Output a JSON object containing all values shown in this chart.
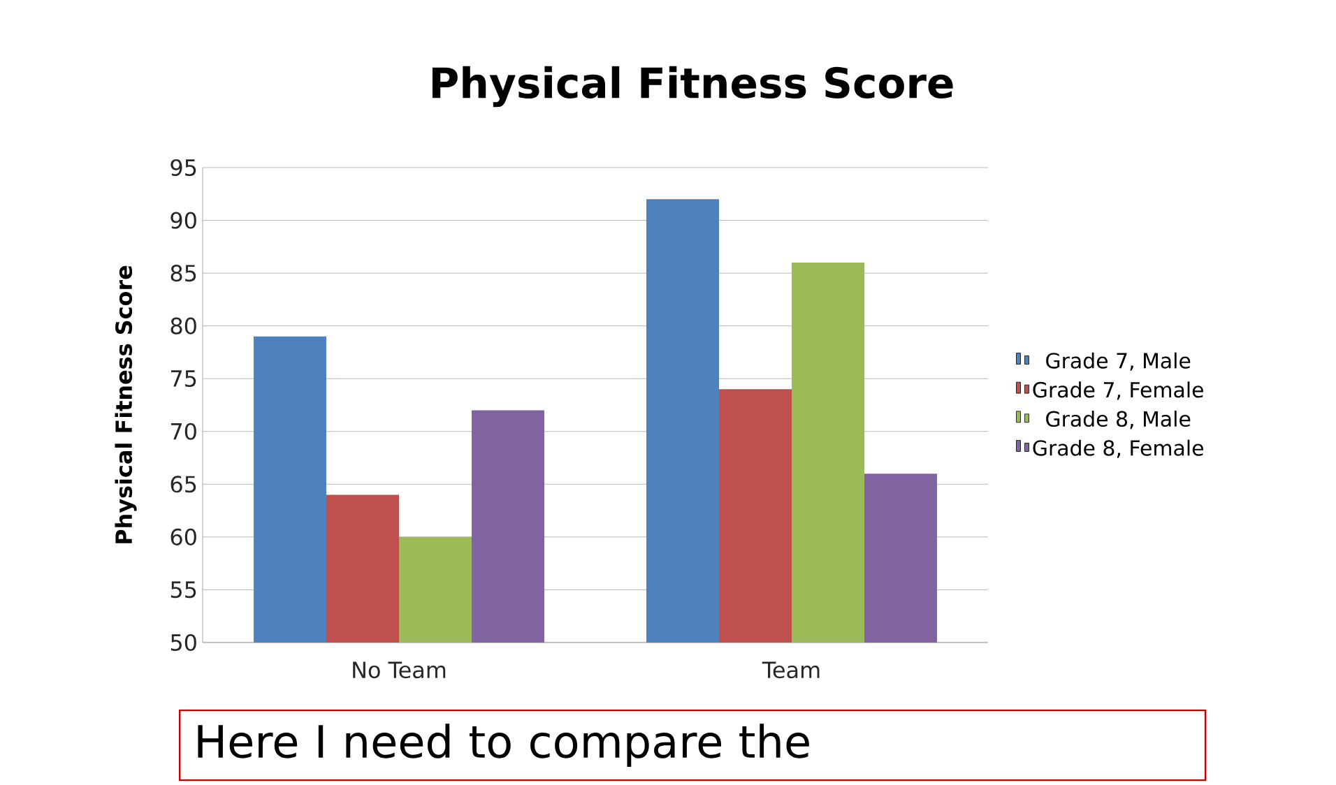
{
  "chart_data": {
    "type": "bar",
    "title": "Physical Fitness Score",
    "ylabel": "Physical Fitness Score",
    "categories": [
      "No Team",
      "Team"
    ],
    "series": [
      {
        "name": "Grade 7, Male",
        "color": "#4f81bd",
        "values": [
          79,
          92
        ]
      },
      {
        "name": "Grade 7, Female",
        "color": "#c0504d",
        "values": [
          64,
          74
        ]
      },
      {
        "name": "Grade 8, Male",
        "color": "#9bbb59",
        "values": [
          60,
          86
        ]
      },
      {
        "name": "Grade 8, Female",
        "color": "#8064a2",
        "values": [
          72,
          66
        ]
      }
    ],
    "ylim": [
      50,
      95
    ],
    "yticks": [
      50,
      55,
      60,
      65,
      70,
      75,
      80,
      85,
      90,
      95
    ],
    "grid": "y",
    "legend": "right",
    "annotations": [
      "Here I need to compare the"
    ]
  }
}
